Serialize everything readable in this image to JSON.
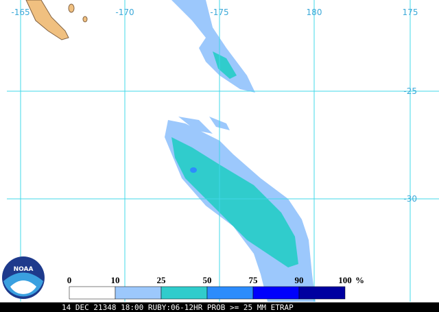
{
  "map": {
    "longitude_labels": [
      "-165",
      "-170",
      "-175",
      "180",
      "175"
    ],
    "latitude_labels": [
      "-25",
      "-30"
    ],
    "logo": "NOAA"
  },
  "legend": {
    "labels": [
      "0",
      "10",
      "25",
      "50",
      "75",
      "90",
      "100"
    ],
    "unit": "%",
    "colors": [
      "#ffffff",
      "#9cc8fc",
      "#30cccc",
      "#2c8cfc",
      "#0000fc",
      "#0000a0"
    ]
  },
  "footer": {
    "text": "14 DEC 21348 18:00 RUBY:06-12HR PROB >= 25 MM ETRAP"
  }
}
